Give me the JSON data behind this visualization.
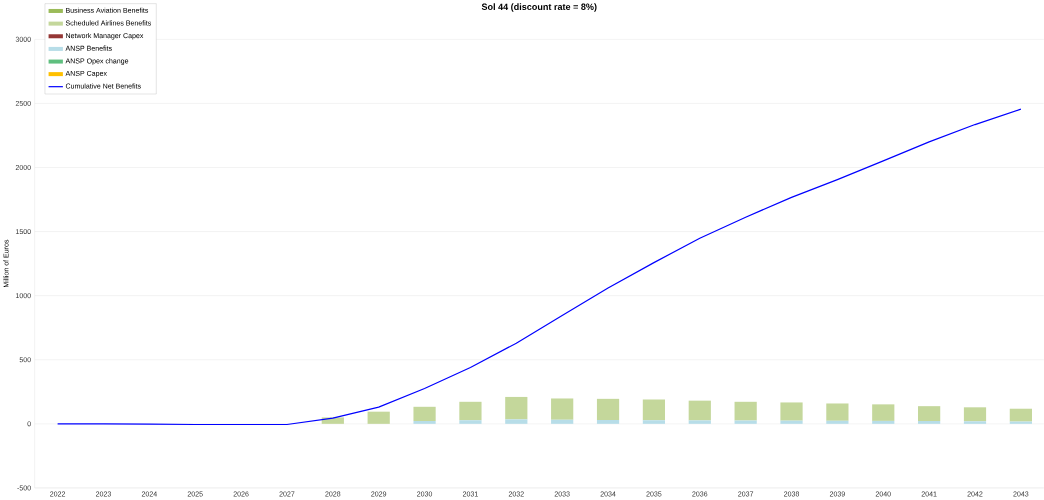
{
  "chart_data": {
    "type": "bar",
    "title": "Sol 44 (discount rate = 8%)",
    "ylabel": "Million of Euros",
    "categories": [
      "2022",
      "2023",
      "2024",
      "2025",
      "2026",
      "2027",
      "2028",
      "2029",
      "2030",
      "2031",
      "2032",
      "2033",
      "2034",
      "2035",
      "2036",
      "2037",
      "2038",
      "2039",
      "2040",
      "2041",
      "2042",
      "2043"
    ],
    "stacked": true,
    "grid": "y",
    "legend": "top left",
    "marker": "none",
    "ylim": [
      -500,
      3000
    ],
    "yticks": [
      -500,
      0,
      500,
      1000,
      1500,
      2000,
      2500,
      3000
    ],
    "series": [
      {
        "name": "ANSP Capex",
        "color": "#ffc000",
        "values": [
          0,
          0,
          0,
          0,
          0,
          0,
          0,
          0,
          0,
          0,
          0,
          0,
          0,
          0,
          0,
          0,
          0,
          0,
          0,
          0,
          0,
          0
        ]
      },
      {
        "name": "ANSP Opex change",
        "color": "#5fbf7f",
        "values": [
          0,
          0,
          0,
          0,
          0,
          0,
          0,
          0,
          0,
          0,
          0,
          0,
          0,
          0,
          0,
          0,
          0,
          0,
          0,
          0,
          0,
          0
        ]
      },
      {
        "name": "ANSP Benefits",
        "color": "#b7dde8",
        "values": [
          0,
          0,
          0,
          0,
          0,
          0,
          null,
          null,
          22,
          28,
          35,
          32,
          30,
          28,
          27,
          26,
          25,
          24,
          23,
          22,
          20,
          18
        ]
      },
      {
        "name": "Network Manager Capex",
        "color": "#953735",
        "values": [
          0,
          0,
          0,
          0,
          0,
          0,
          0,
          0,
          0,
          0,
          0,
          0,
          0,
          0,
          0,
          0,
          0,
          0,
          0,
          0,
          0,
          0
        ]
      },
      {
        "name": "Scheduled Airlines Benefits",
        "color": "#c4d79b",
        "values": [
          0,
          0,
          0,
          0,
          0,
          0,
          50,
          95,
          111,
          144,
          175,
          166,
          165,
          162,
          154,
          146,
          142,
          135,
          129,
          116,
          109,
          100
        ]
      },
      {
        "name": "Business Aviation Benefits",
        "color": "#9bbb59",
        "values": [
          0,
          0,
          0,
          0,
          0,
          0,
          0,
          0,
          0,
          0,
          0,
          0,
          0,
          0,
          0,
          0,
          0,
          0,
          0,
          0,
          0,
          0
        ]
      },
      {
        "name": "Cumulative Net Benefits",
        "type": "line",
        "color": "#0000ff",
        "line_style": "solid",
        "values": [
          0,
          0,
          -2,
          -5,
          -5,
          -5,
          45,
          130,
          276,
          440,
          629,
          845,
          1060,
          1258,
          1448,
          1612,
          1767,
          1905,
          2052,
          2200,
          2335,
          2455
        ]
      }
    ]
  }
}
